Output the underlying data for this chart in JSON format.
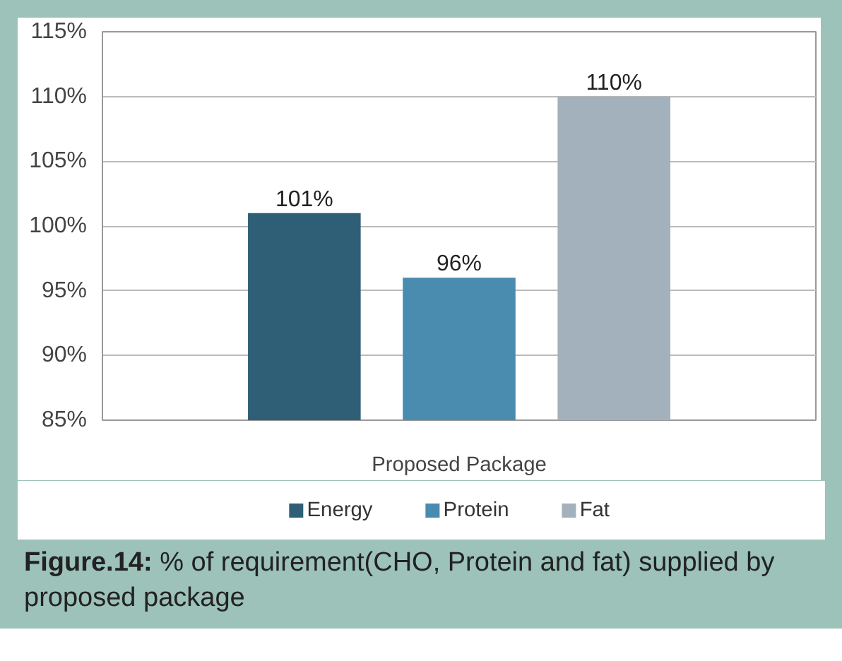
{
  "chart_data": {
    "type": "bar",
    "categories": [
      "Proposed Package"
    ],
    "series": [
      {
        "name": "Energy",
        "color": "#2e5f77",
        "values": [
          101
        ],
        "value_labels": [
          "101%"
        ]
      },
      {
        "name": "Protein",
        "color": "#4a8bb0",
        "values": [
          96
        ],
        "value_labels": [
          "96%"
        ]
      },
      {
        "name": "Fat",
        "color": "#a3b1bc",
        "values": [
          110
        ],
        "value_labels": [
          "110%"
        ]
      }
    ],
    "ylim": [
      85,
      115
    ],
    "yticks": [
      {
        "value": 85,
        "label": "85%"
      },
      {
        "value": 90,
        "label": "90%"
      },
      {
        "value": 95,
        "label": "95%"
      },
      {
        "value": 100,
        "label": "100%"
      },
      {
        "value": 105,
        "label": "105%"
      },
      {
        "value": 110,
        "label": "110%"
      },
      {
        "value": 115,
        "label": "115%"
      }
    ],
    "grid": "y",
    "legend": "bottom",
    "annotations": [
      "Figure.14:",
      "% of requirement(CHO, Protein and fat) supplied by proposed package"
    ]
  }
}
